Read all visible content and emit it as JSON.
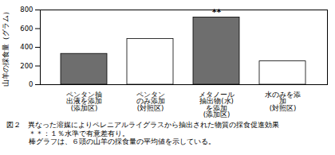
{
  "chart_data": {
    "type": "bar",
    "y_label": "山羊の採食量（グラム）",
    "categories": [
      "ペンタン抽\n出液を添加\n(添加区)",
      "ペンタン\nのみ添加\n(対照区)",
      "メタノール\n抽出物(水)\nを添加\n(添加区)",
      "水のみを添\n加\n(対照区)"
    ],
    "values": [
      330,
      490,
      720,
      250
    ],
    "colors": [
      "#6e6e6e",
      "#ffffff",
      "#6e6e6e",
      "#ffffff"
    ],
    "ylim": [
      0,
      800
    ],
    "yticks": [
      0,
      200,
      400,
      600,
      800
    ],
    "annotations": [
      {
        "text": "**",
        "category": "メタノール\n抽出物(水)\nを添加\n(添加区)"
      }
    ],
    "caption": [
      "図２　異なった溶媒によりペレニアルライグラスから抽出された物質の採食促進効果",
      "＊＊：１％水準で有意差有り。",
      "棒グラフは、６頭の山羊の採食量の平均値を示している。"
    ]
  }
}
